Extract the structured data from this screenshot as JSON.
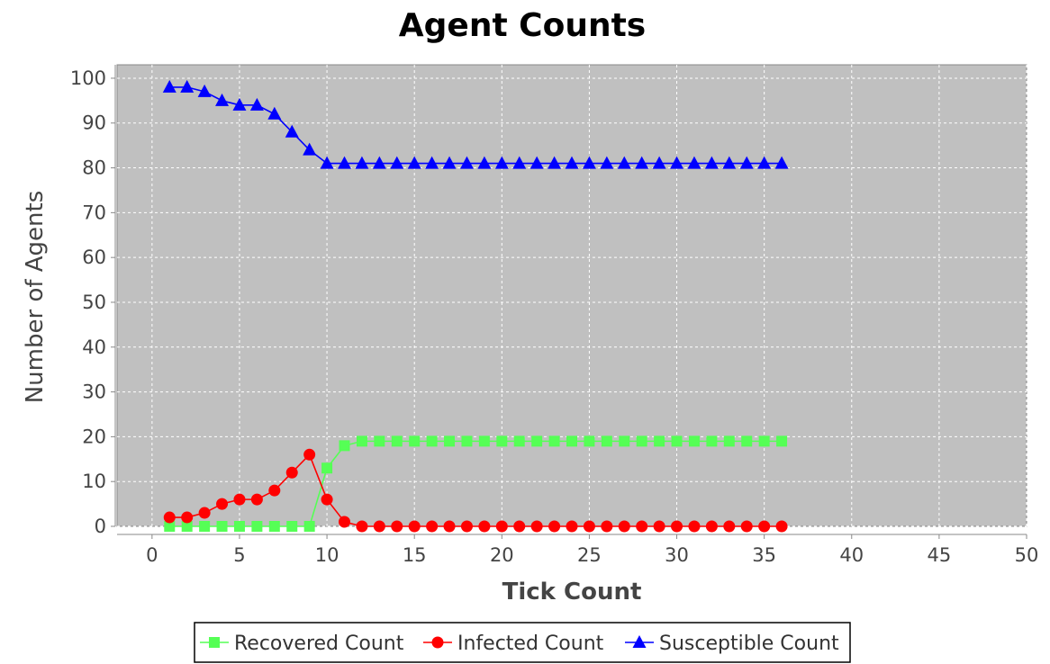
{
  "chart_data": {
    "type": "line",
    "title": "Agent Counts",
    "xlabel": "Tick Count",
    "ylabel": "Number of Agents",
    "xlim": [
      -2,
      50
    ],
    "ylim": [
      0,
      103
    ],
    "xticks": [
      0,
      5,
      10,
      15,
      20,
      25,
      30,
      35,
      40,
      45,
      50
    ],
    "yticks": [
      0,
      10,
      20,
      30,
      40,
      50,
      60,
      70,
      80,
      90,
      100
    ],
    "grid": true,
    "plot_background": "#c0c0c0",
    "legend_position": "bottom",
    "x": [
      1,
      2,
      3,
      4,
      5,
      6,
      7,
      8,
      9,
      10,
      11,
      12,
      13,
      14,
      15,
      16,
      17,
      18,
      19,
      20,
      21,
      22,
      23,
      24,
      25,
      26,
      27,
      28,
      29,
      30,
      31,
      32,
      33,
      34,
      35,
      36
    ],
    "series": [
      {
        "name": "Recovered Count",
        "color": "#55ff55",
        "marker": "square",
        "values": [
          0,
          0,
          0,
          0,
          0,
          0,
          0,
          0,
          0,
          13,
          18,
          19,
          19,
          19,
          19,
          19,
          19,
          19,
          19,
          19,
          19,
          19,
          19,
          19,
          19,
          19,
          19,
          19,
          19,
          19,
          19,
          19,
          19,
          19,
          19,
          19
        ]
      },
      {
        "name": "Infected Count",
        "color": "#ff0000",
        "marker": "circle",
        "values": [
          2,
          2,
          3,
          5,
          6,
          6,
          8,
          12,
          16,
          6,
          1,
          0,
          0,
          0,
          0,
          0,
          0,
          0,
          0,
          0,
          0,
          0,
          0,
          0,
          0,
          0,
          0,
          0,
          0,
          0,
          0,
          0,
          0,
          0,
          0,
          0
        ]
      },
      {
        "name": "Susceptible Count",
        "color": "#0000ff",
        "marker": "triangle",
        "values": [
          98,
          98,
          97,
          95,
          94,
          94,
          92,
          88,
          84,
          81,
          81,
          81,
          81,
          81,
          81,
          81,
          81,
          81,
          81,
          81,
          81,
          81,
          81,
          81,
          81,
          81,
          81,
          81,
          81,
          81,
          81,
          81,
          81,
          81,
          81,
          81
        ]
      }
    ]
  }
}
